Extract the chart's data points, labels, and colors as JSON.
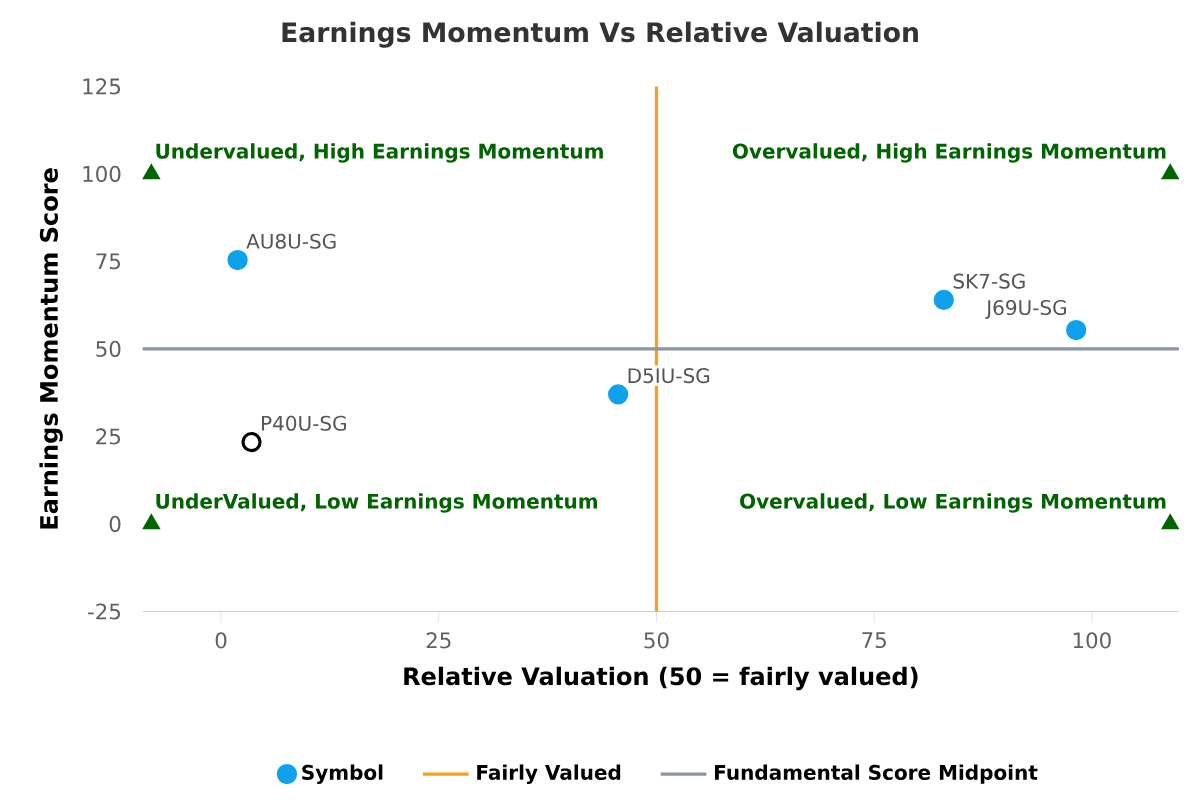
{
  "chart_data": {
    "type": "scatter",
    "title": "Earnings Momentum Vs Relative Valuation",
    "xlabel": "Relative Valuation (50 = fairly valued)",
    "ylabel": "Earnings Momentum Score",
    "xlim": [
      -9,
      110
    ],
    "xticks": [
      0,
      25,
      50,
      75,
      100
    ],
    "ylim": [
      -25,
      125
    ],
    "yticks": [
      -25,
      0,
      25,
      50,
      75,
      100,
      125
    ],
    "grid": false,
    "legend": "bottom",
    "series": [
      {
        "name": "Symbol",
        "color": "#0ea1ec",
        "marker": "circle",
        "x": [
          1.9,
          83,
          98.2,
          45.6
        ],
        "values": [
          75.4,
          64,
          55.4,
          37
        ]
      },
      {
        "color": "#000000",
        "marker": "circle",
        "x": [
          3.5
        ],
        "values": [
          23.4
        ]
      },
      {
        "color": "#006400",
        "marker": "triangle",
        "x": [
          -8,
          109,
          -8,
          109
        ],
        "values": [
          100,
          100,
          0,
          0
        ]
      }
    ],
    "ref_lines": [
      {
        "axis": "x",
        "value": 50,
        "label": "Fairly Valued",
        "color": "#f7a11a"
      },
      {
        "axis": "y",
        "value": 50,
        "label": "Fundamental Score Midpoint",
        "color": "#8c93a3"
      }
    ],
    "annotations": [
      {
        "text": "AU8U-SG",
        "x": 1.9,
        "y": 75.4
      },
      {
        "text": "SK7-SG",
        "x": 83,
        "y": 64
      },
      {
        "text": "J69U-SG",
        "x": 98.2,
        "y": 55.4
      },
      {
        "text": "D5IU-SG",
        "x": 45.6,
        "y": 37
      },
      {
        "text": "P40U-SG",
        "x": 3.5,
        "y": 23.4
      },
      {
        "text": "Undervalued, High Earnings Momentum",
        "x": -8,
        "y": 100
      },
      {
        "text": "Overvalued, High Earnings Momentum",
        "x": 109,
        "y": 100
      },
      {
        "text": "UnderValued, Low Earnings Momentum",
        "x": -8,
        "y": 0
      },
      {
        "text": "Overvalued, Low Earnings Momentum",
        "x": 109,
        "y": 0
      }
    ]
  }
}
